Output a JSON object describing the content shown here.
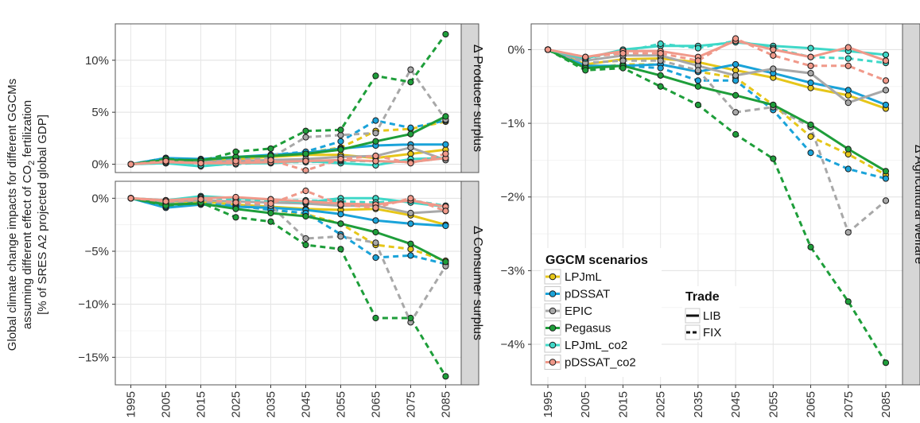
{
  "figure": {
    "ylabel_lines": [
      "Global climate change impacts for different GGCMs",
      "assuming different effect of CO2 fertilization",
      "[% of SRES A2 projected global GDP]"
    ],
    "ylabel_co2_prefix": "assuming different effect of CO",
    "ylabel_co2_sub": "2",
    "ylabel_co2_suffix": " fertilization"
  },
  "legend": {
    "title": "GGCM scenarios",
    "items": [
      {
        "label": "LPJmL",
        "color": "#E6C619"
      },
      {
        "label": "pDSSAT",
        "color": "#1AA3D9"
      },
      {
        "label": "EPIC",
        "color": "#A8A8A8"
      },
      {
        "label": "Pegasus",
        "color": "#1E9E3A"
      },
      {
        "label": "LPJmL_co2",
        "color": "#3FD8C8"
      },
      {
        "label": "pDSSAT_co2",
        "color": "#F0998A"
      }
    ],
    "trade_title": "Trade",
    "trade_items": [
      {
        "label": "LIB",
        "style": "solid"
      },
      {
        "label": "FIX",
        "style": "dashed"
      }
    ]
  },
  "chart_data": [
    {
      "type": "line",
      "facet": "Δ Producer surplus",
      "x": [
        1995,
        2005,
        2015,
        2025,
        2035,
        2045,
        2055,
        2065,
        2075,
        2085
      ],
      "yticks": [
        "0%",
        "5%",
        "10%"
      ],
      "ylim": [
        -0.8,
        13.5
      ],
      "grid": true,
      "series": [
        {
          "name": "LPJmL",
          "trade": "LIB",
          "values": [
            0,
            0.4,
            0.3,
            0.5,
            0.7,
            0.9,
            0.9,
            0.6,
            1.0,
            1.4
          ]
        },
        {
          "name": "LPJmL",
          "trade": "FIX",
          "values": [
            0,
            0.5,
            0.2,
            0.6,
            0.8,
            1.1,
            1.6,
            3.2,
            3.4,
            4.1
          ]
        },
        {
          "name": "pDSSAT",
          "trade": "LIB",
          "values": [
            0,
            0.6,
            0.5,
            0.7,
            0.9,
            1.1,
            1.5,
            1.8,
            1.9,
            1.9
          ]
        },
        {
          "name": "pDSSAT",
          "trade": "FIX",
          "values": [
            0,
            0.6,
            0.4,
            0.6,
            0.9,
            1.2,
            2.2,
            4.2,
            3.5,
            4.2
          ]
        },
        {
          "name": "EPIC",
          "trade": "LIB",
          "values": [
            0,
            0.2,
            0.2,
            0.3,
            0.4,
            0.5,
            0.7,
            0.8,
            1.6,
            0.4
          ]
        },
        {
          "name": "EPIC",
          "trade": "FIX",
          "values": [
            0,
            0.3,
            0.2,
            0.4,
            0.6,
            2.6,
            2.8,
            3.0,
            9.1,
            4.3
          ]
        },
        {
          "name": "Pegasus",
          "trade": "LIB",
          "values": [
            0,
            0.4,
            0.4,
            0.7,
            0.8,
            1.0,
            1.4,
            2.2,
            2.9,
            4.6
          ]
        },
        {
          "name": "Pegasus",
          "trade": "FIX",
          "values": [
            0,
            0.5,
            0.3,
            1.2,
            1.5,
            3.2,
            3.3,
            8.5,
            7.9,
            12.5
          ]
        },
        {
          "name": "LPJmL_co2",
          "trade": "LIB",
          "values": [
            0,
            0.1,
            -0.2,
            0.1,
            0.1,
            0.3,
            0.1,
            -0.1,
            0.5,
            0.6
          ]
        },
        {
          "name": "LPJmL_co2",
          "trade": "FIX",
          "values": [
            0,
            0.1,
            -0.1,
            0.0,
            0.2,
            0.2,
            0.3,
            0.3,
            0.2,
            0.6
          ]
        },
        {
          "name": "pDSSAT_co2",
          "trade": "LIB",
          "values": [
            0,
            0.2,
            0.1,
            0.1,
            0.2,
            0.3,
            0.4,
            0.3,
            0.2,
            0.6
          ]
        },
        {
          "name": "pDSSAT_co2",
          "trade": "FIX",
          "values": [
            0,
            0.3,
            0.1,
            0.3,
            0.4,
            -0.6,
            0.5,
            0.8,
            0.1,
            1.0
          ]
        }
      ]
    },
    {
      "type": "line",
      "facet": "Δ Consumer surplus",
      "x": [
        1995,
        2005,
        2015,
        2025,
        2035,
        2045,
        2055,
        2065,
        2075,
        2085
      ],
      "yticks": [
        "0%",
        "−5%",
        "−10%",
        "−15%"
      ],
      "ylim": [
        -17.6,
        1.6
      ],
      "grid": true,
      "series": [
        {
          "name": "LPJmL",
          "trade": "LIB",
          "values": [
            0,
            -0.6,
            -0.3,
            -0.6,
            -0.8,
            -1.0,
            -1.1,
            -1.0,
            -1.6,
            -2.5
          ]
        },
        {
          "name": "LPJmL",
          "trade": "FIX",
          "values": [
            0,
            -0.7,
            -0.2,
            -0.7,
            -1.1,
            -1.5,
            -2.4,
            -4.4,
            -4.8,
            -5.9
          ]
        },
        {
          "name": "pDSSAT",
          "trade": "LIB",
          "values": [
            0,
            -0.9,
            -0.6,
            -0.8,
            -0.9,
            -1.1,
            -1.5,
            -2.1,
            -2.4,
            -2.6
          ]
        },
        {
          "name": "pDSSAT",
          "trade": "FIX",
          "values": [
            0,
            -0.8,
            -0.5,
            -0.7,
            -1.1,
            -1.4,
            -3.4,
            -5.6,
            -5.4,
            -6.2
          ]
        },
        {
          "name": "EPIC",
          "trade": "LIB",
          "values": [
            0,
            -0.3,
            -0.2,
            -0.3,
            -0.4,
            -0.5,
            -0.7,
            -0.7,
            -1.4,
            -1.2
          ]
        },
        {
          "name": "EPIC",
          "trade": "FIX",
          "values": [
            0,
            -0.4,
            -0.3,
            -0.5,
            -0.7,
            -3.8,
            -3.6,
            -4.2,
            -11.7,
            -6.4
          ]
        },
        {
          "name": "Pegasus",
          "trade": "LIB",
          "values": [
            0,
            -0.6,
            -0.5,
            -1.0,
            -1.4,
            -1.7,
            -2.4,
            -3.2,
            -4.3,
            -6.0
          ]
        },
        {
          "name": "Pegasus",
          "trade": "FIX",
          "values": [
            0,
            -0.7,
            -0.4,
            -1.8,
            -2.2,
            -4.4,
            -4.8,
            -11.3,
            -11.3,
            -16.8
          ]
        },
        {
          "name": "LPJmL_co2",
          "trade": "LIB",
          "values": [
            0,
            -0.2,
            0.2,
            0.0,
            -0.1,
            -0.4,
            0.0,
            0.0,
            -0.4,
            -0.8
          ]
        },
        {
          "name": "LPJmL_co2",
          "trade": "FIX",
          "values": [
            0,
            -0.2,
            0.1,
            -0.1,
            -0.2,
            -0.2,
            -0.3,
            -0.4,
            -0.2,
            -0.7
          ]
        },
        {
          "name": "pDSSAT_co2",
          "trade": "LIB",
          "values": [
            0,
            -0.2,
            0.0,
            0.1,
            -0.1,
            -0.3,
            -0.5,
            -0.6,
            -0.2,
            -0.8
          ]
        },
        {
          "name": "pDSSAT_co2",
          "trade": "FIX",
          "values": [
            0,
            -0.3,
            -0.1,
            -0.4,
            -0.5,
            0.7,
            -0.6,
            -0.9,
            0.0,
            -1.2
          ]
        }
      ]
    },
    {
      "type": "line",
      "facet": "Δ Agricultural welfare",
      "x": [
        1995,
        2005,
        2015,
        2025,
        2035,
        2045,
        2055,
        2065,
        2075,
        2085
      ],
      "yticks": [
        "0%",
        "−1%",
        "−2%",
        "−3%",
        "−4%"
      ],
      "ylim": [
        -4.55,
        0.35
      ],
      "grid": true,
      "series": [
        {
          "name": "LPJmL",
          "trade": "LIB",
          "values": [
            0,
            -0.2,
            -0.13,
            -0.12,
            -0.17,
            -0.28,
            -0.38,
            -0.52,
            -0.62,
            -0.8
          ]
        },
        {
          "name": "LPJmL",
          "trade": "FIX",
          "values": [
            0,
            -0.25,
            -0.2,
            -0.2,
            -0.3,
            -0.38,
            -0.75,
            -1.18,
            -1.42,
            -1.7
          ]
        },
        {
          "name": "pDSSAT",
          "trade": "LIB",
          "values": [
            0,
            -0.22,
            -0.22,
            -0.2,
            -0.3,
            -0.2,
            -0.32,
            -0.45,
            -0.55,
            -0.75
          ]
        },
        {
          "name": "pDSSAT",
          "trade": "FIX",
          "values": [
            0,
            -0.25,
            -0.22,
            -0.25,
            -0.42,
            -0.42,
            -0.82,
            -1.4,
            -1.62,
            -1.75
          ]
        },
        {
          "name": "EPIC",
          "trade": "LIB",
          "values": [
            0,
            -0.15,
            -0.08,
            -0.08,
            -0.22,
            -0.35,
            -0.26,
            -0.32,
            -0.72,
            -0.55
          ]
        },
        {
          "name": "EPIC",
          "trade": "FIX",
          "values": [
            0,
            -0.18,
            -0.15,
            -0.15,
            -0.28,
            -0.85,
            -0.78,
            -1.05,
            -2.48,
            -2.05
          ]
        },
        {
          "name": "Pegasus",
          "trade": "LIB",
          "values": [
            0,
            -0.25,
            -0.22,
            -0.35,
            -0.5,
            -0.62,
            -0.75,
            -1.02,
            -1.35,
            -1.65
          ]
        },
        {
          "name": "Pegasus",
          "trade": "FIX",
          "values": [
            0,
            -0.28,
            -0.25,
            -0.5,
            -0.75,
            -1.15,
            -1.48,
            -2.68,
            -3.42,
            -4.25
          ]
        },
        {
          "name": "LPJmL_co2",
          "trade": "LIB",
          "values": [
            0,
            -0.12,
            0.0,
            0.05,
            0.05,
            0.1,
            0.05,
            0.02,
            -0.02,
            -0.07
          ]
        },
        {
          "name": "LPJmL_co2",
          "trade": "FIX",
          "values": [
            0,
            -0.12,
            -0.03,
            0.08,
            0.02,
            0.12,
            0.02,
            -0.1,
            -0.12,
            -0.18
          ]
        },
        {
          "name": "pDSSAT_co2",
          "trade": "LIB",
          "values": [
            0,
            -0.1,
            -0.02,
            -0.02,
            -0.1,
            0.12,
            0.0,
            -0.1,
            0.03,
            -0.15
          ]
        },
        {
          "name": "pDSSAT_co2",
          "trade": "FIX",
          "values": [
            0,
            -0.1,
            -0.05,
            -0.05,
            -0.15,
            0.15,
            -0.08,
            -0.22,
            -0.22,
            -0.42
          ]
        }
      ]
    }
  ]
}
